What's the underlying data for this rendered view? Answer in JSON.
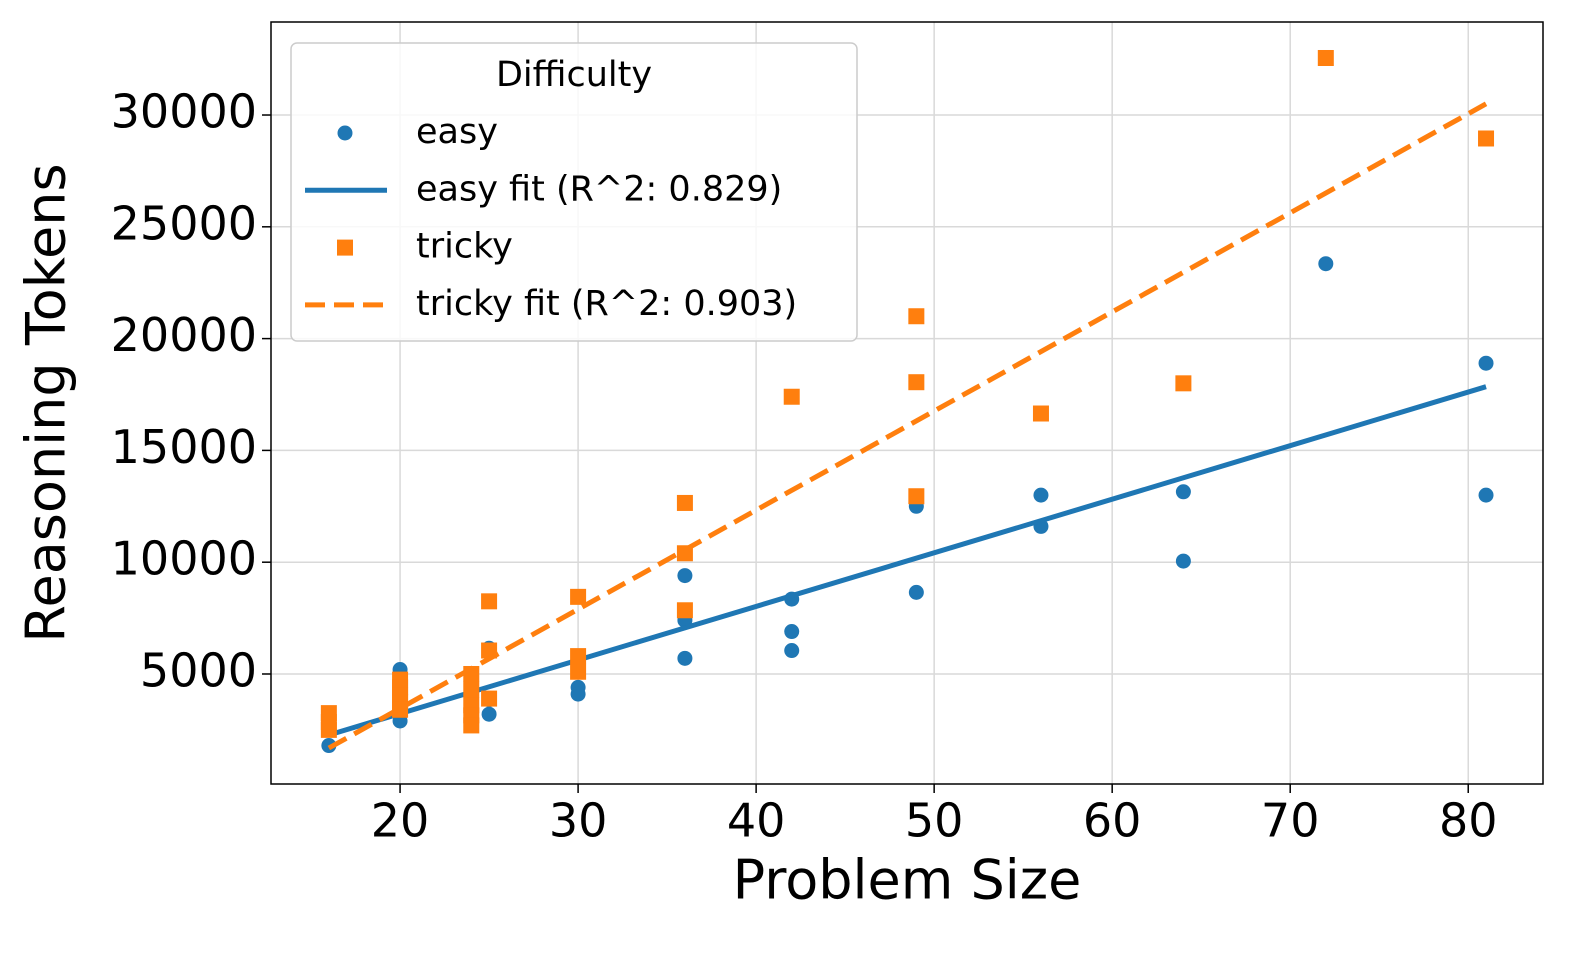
{
  "chart_data": {
    "type": "scatter",
    "xlabel": "Problem Size",
    "ylabel": "Reasoning Tokens",
    "xlim": [
      12.75,
      84.2
    ],
    "ylim": [
      80,
      34160
    ],
    "xticks": [
      20,
      30,
      40,
      50,
      60,
      70,
      80
    ],
    "yticks": [
      5000,
      10000,
      15000,
      20000,
      25000,
      30000
    ],
    "grid": true,
    "legend_title": "Difficulty",
    "legend_position": "upper left",
    "series": [
      {
        "name": "easy",
        "color": "#1f77b4",
        "mode": "markers",
        "marker": "circle",
        "x": [
          16,
          20,
          20,
          20,
          20,
          20,
          20,
          24,
          24,
          24,
          25,
          25,
          25,
          30,
          30,
          30,
          36,
          36,
          36,
          42,
          42,
          42,
          49,
          49,
          56,
          56,
          64,
          64,
          72,
          81,
          81
        ],
        "values": [
          1800,
          5200,
          4800,
          4300,
          3900,
          3500,
          2900,
          4100,
          3700,
          3300,
          6150,
          3850,
          3200,
          5700,
          4400,
          4100,
          9400,
          7400,
          5700,
          8350,
          6900,
          6050,
          12500,
          8650,
          13000,
          11600,
          13150,
          10050,
          23350,
          18900,
          13000
        ]
      },
      {
        "name": "easy fit (R^2: 0.829)",
        "color": "#1f77b4",
        "mode": "line",
        "dash": false,
        "x": [
          16,
          81
        ],
        "values": [
          2270,
          17850
        ]
      },
      {
        "name": "tricky",
        "color": "#ff7f0e",
        "mode": "markers",
        "marker": "square",
        "x": [
          16,
          16,
          16,
          20,
          20,
          20,
          20,
          20,
          24,
          24,
          24,
          24,
          24,
          25,
          25,
          25,
          30,
          30,
          30,
          36,
          36,
          36,
          42,
          49,
          49,
          49,
          56,
          64,
          72,
          81
        ],
        "values": [
          3250,
          2850,
          2500,
          4750,
          4400,
          4050,
          3750,
          3400,
          5000,
          4300,
          3600,
          3150,
          2700,
          8250,
          6050,
          3900,
          8450,
          5800,
          5100,
          12650,
          10400,
          7850,
          17400,
          21000,
          18050,
          12950,
          16650,
          18000,
          32550,
          28950
        ]
      },
      {
        "name": "tricky fit (R^2: 0.903)",
        "color": "#ff7f0e",
        "mode": "line",
        "dash": true,
        "x": [
          16,
          81
        ],
        "values": [
          1690,
          30500
        ]
      }
    ]
  }
}
